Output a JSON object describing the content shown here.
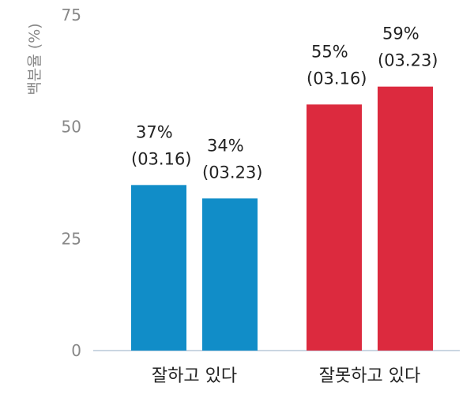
{
  "chart_data": {
    "type": "bar",
    "title": "",
    "xlabel": "",
    "ylabel": "백분율 (%)",
    "ylim": [
      0,
      75
    ],
    "yticks": [
      0,
      25,
      50,
      75
    ],
    "grid": false,
    "legend": "none",
    "groups": [
      {
        "category": "잘하고 있다",
        "color": "#118dc8",
        "bars": [
          {
            "value": 37,
            "label_value": "37%",
            "label_date": "(03.16)"
          },
          {
            "value": 34,
            "label_value": "34%",
            "label_date": "(03.23)"
          }
        ]
      },
      {
        "category": "잘못하고 있다",
        "color": "#dc2a3e",
        "bars": [
          {
            "value": 55,
            "label_value": "55%",
            "label_date": "(03.16)"
          },
          {
            "value": 59,
            "label_value": "59%",
            "label_date": "(03.23)"
          }
        ]
      }
    ]
  },
  "colors": {
    "axis": "#b8c8d8",
    "tick_text": "#888888",
    "text": "#222222"
  }
}
